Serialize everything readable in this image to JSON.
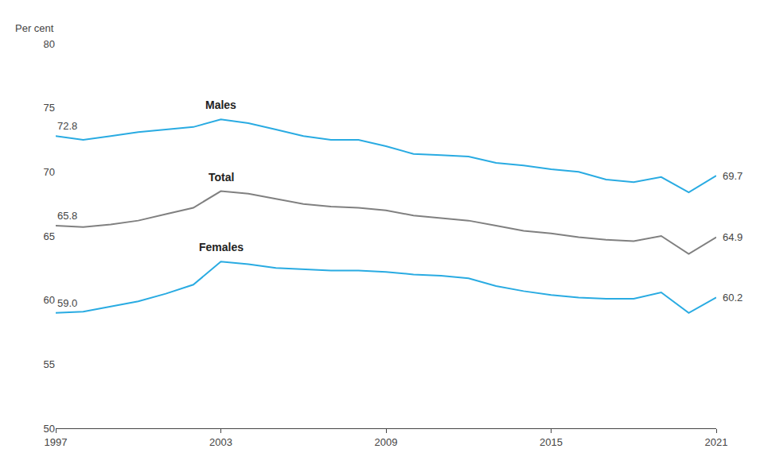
{
  "chart_data": {
    "type": "line",
    "y_label": "Per cent",
    "x": [
      1997,
      1998,
      1999,
      2000,
      2001,
      2002,
      2003,
      2004,
      2005,
      2006,
      2007,
      2008,
      2009,
      2010,
      2011,
      2012,
      2013,
      2014,
      2015,
      2016,
      2017,
      2018,
      2019,
      2020,
      2021
    ],
    "series": [
      {
        "name": "Males",
        "color": "#29ABE2",
        "values": [
          72.8,
          72.5,
          72.8,
          73.1,
          73.3,
          73.5,
          74.1,
          73.8,
          73.3,
          72.8,
          72.5,
          72.5,
          72.0,
          71.4,
          71.3,
          71.2,
          70.7,
          70.5,
          70.2,
          70.0,
          69.4,
          69.2,
          69.6,
          68.4,
          69.7
        ],
        "value_labels": [
          "72.8",
          null,
          null,
          null,
          null,
          null,
          null,
          null,
          null,
          null,
          null,
          null,
          null,
          null,
          null,
          null,
          null,
          null,
          null,
          null,
          null,
          null,
          null,
          null,
          "69.7"
        ]
      },
      {
        "name": "Total",
        "color": "#808080",
        "values": [
          65.8,
          65.7,
          65.9,
          66.2,
          66.7,
          67.2,
          68.5,
          68.3,
          67.9,
          67.5,
          67.3,
          67.2,
          67.0,
          66.6,
          66.4,
          66.2,
          65.8,
          65.4,
          65.2,
          64.9,
          64.7,
          64.6,
          65.0,
          63.6,
          64.9
        ],
        "value_labels": [
          "65.8",
          null,
          null,
          null,
          null,
          null,
          null,
          null,
          null,
          null,
          null,
          null,
          null,
          null,
          null,
          null,
          null,
          null,
          null,
          null,
          null,
          null,
          null,
          null,
          "64.9"
        ]
      },
      {
        "name": "Females",
        "color": "#29ABE2",
        "values": [
          59.0,
          59.1,
          59.5,
          59.9,
          60.5,
          61.2,
          63.0,
          62.8,
          62.5,
          62.4,
          62.3,
          62.3,
          62.2,
          62.0,
          61.9,
          61.7,
          61.1,
          60.7,
          60.4,
          60.2,
          60.1,
          60.1,
          60.6,
          59.0,
          60.2
        ],
        "value_labels": [
          "59.0",
          null,
          null,
          null,
          null,
          null,
          null,
          null,
          null,
          null,
          null,
          null,
          null,
          null,
          null,
          null,
          null,
          null,
          null,
          null,
          null,
          null,
          null,
          null,
          "60.2"
        ]
      }
    ],
    "xlim": [
      1997,
      2021
    ],
    "xticks": [
      1997,
      2003,
      2009,
      2015,
      2021
    ],
    "ylim": [
      50,
      80
    ],
    "yticks": [
      50,
      55,
      60,
      65,
      70,
      75,
      80
    ],
    "grid": false,
    "data_labels": true
  }
}
